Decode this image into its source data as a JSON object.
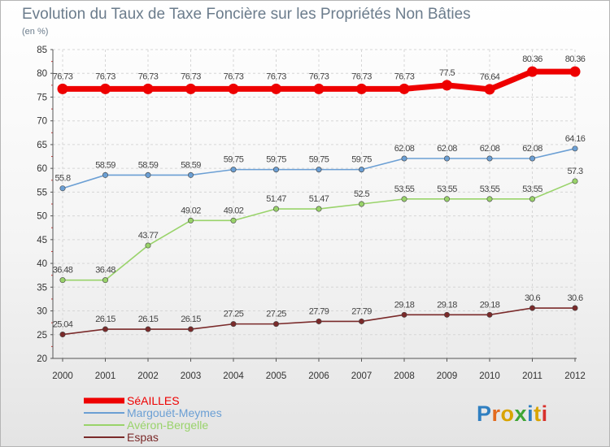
{
  "chart_data": {
    "type": "line",
    "title": "Evolution du Taux de Taxe Foncière sur les Propriétés Non Bâties",
    "subtitle": "(en %)",
    "x": [
      "2000",
      "2001",
      "2002",
      "2003",
      "2004",
      "2005",
      "2006",
      "2007",
      "2008",
      "2009",
      "2010",
      "2011",
      "2012"
    ],
    "ylim": [
      20,
      85
    ],
    "yticks": [
      "20",
      "25",
      "30",
      "35",
      "40",
      "45",
      "50",
      "55",
      "60",
      "65",
      "70",
      "75",
      "80",
      "85"
    ],
    "grid": true,
    "legend_position": "bottom-left",
    "series": [
      {
        "name": "SéAILLES",
        "color": "#ee0000",
        "values": [
          76.73,
          76.73,
          76.73,
          76.73,
          76.73,
          76.73,
          76.73,
          76.73,
          76.73,
          77.5,
          76.64,
          80.36,
          80.36
        ],
        "labels": [
          "76.73",
          "76.73",
          "76.73",
          "76.73",
          "76.73",
          "76.73",
          "76.73",
          "76.73",
          "76.73",
          "77.5",
          "76.64",
          "80.36",
          "80.36"
        ]
      },
      {
        "name": "Margouët-Meymes",
        "color": "#6b9fd4",
        "values": [
          55.8,
          58.59,
          58.59,
          58.59,
          59.75,
          59.75,
          59.75,
          59.75,
          62.08,
          62.08,
          62.08,
          62.08,
          64.16
        ],
        "labels": [
          "55.8",
          "58.59",
          "58.59",
          "58.59",
          "59.75",
          "59.75",
          "59.75",
          "59.75",
          "62.08",
          "62.08",
          "62.08",
          "62.08",
          "64.16"
        ]
      },
      {
        "name": "Avéron-Bergelle",
        "color": "#99d36a",
        "values": [
          36.48,
          36.48,
          43.77,
          49.02,
          49.02,
          51.47,
          51.47,
          52.5,
          53.55,
          53.55,
          53.55,
          53.55,
          57.3
        ],
        "labels": [
          "36.48",
          "36.48",
          "43.77",
          "49.02",
          "49.02",
          "51.47",
          "51.47",
          "52.5",
          "53.55",
          "53.55",
          "53.55",
          "53.55",
          "57.3"
        ]
      },
      {
        "name": "Espas",
        "color": "#7a2a2a",
        "values": [
          25.04,
          26.15,
          26.15,
          26.15,
          27.25,
          27.25,
          27.79,
          27.79,
          29.18,
          29.18,
          29.18,
          30.6,
          30.6
        ],
        "labels": [
          "25.04",
          "26.15",
          "26.15",
          "26.15",
          "27.25",
          "27.25",
          "27.79",
          "27.79",
          "29.18",
          "29.18",
          "29.18",
          "30.6",
          "30.6"
        ]
      }
    ]
  },
  "watermark": "Proxiti"
}
